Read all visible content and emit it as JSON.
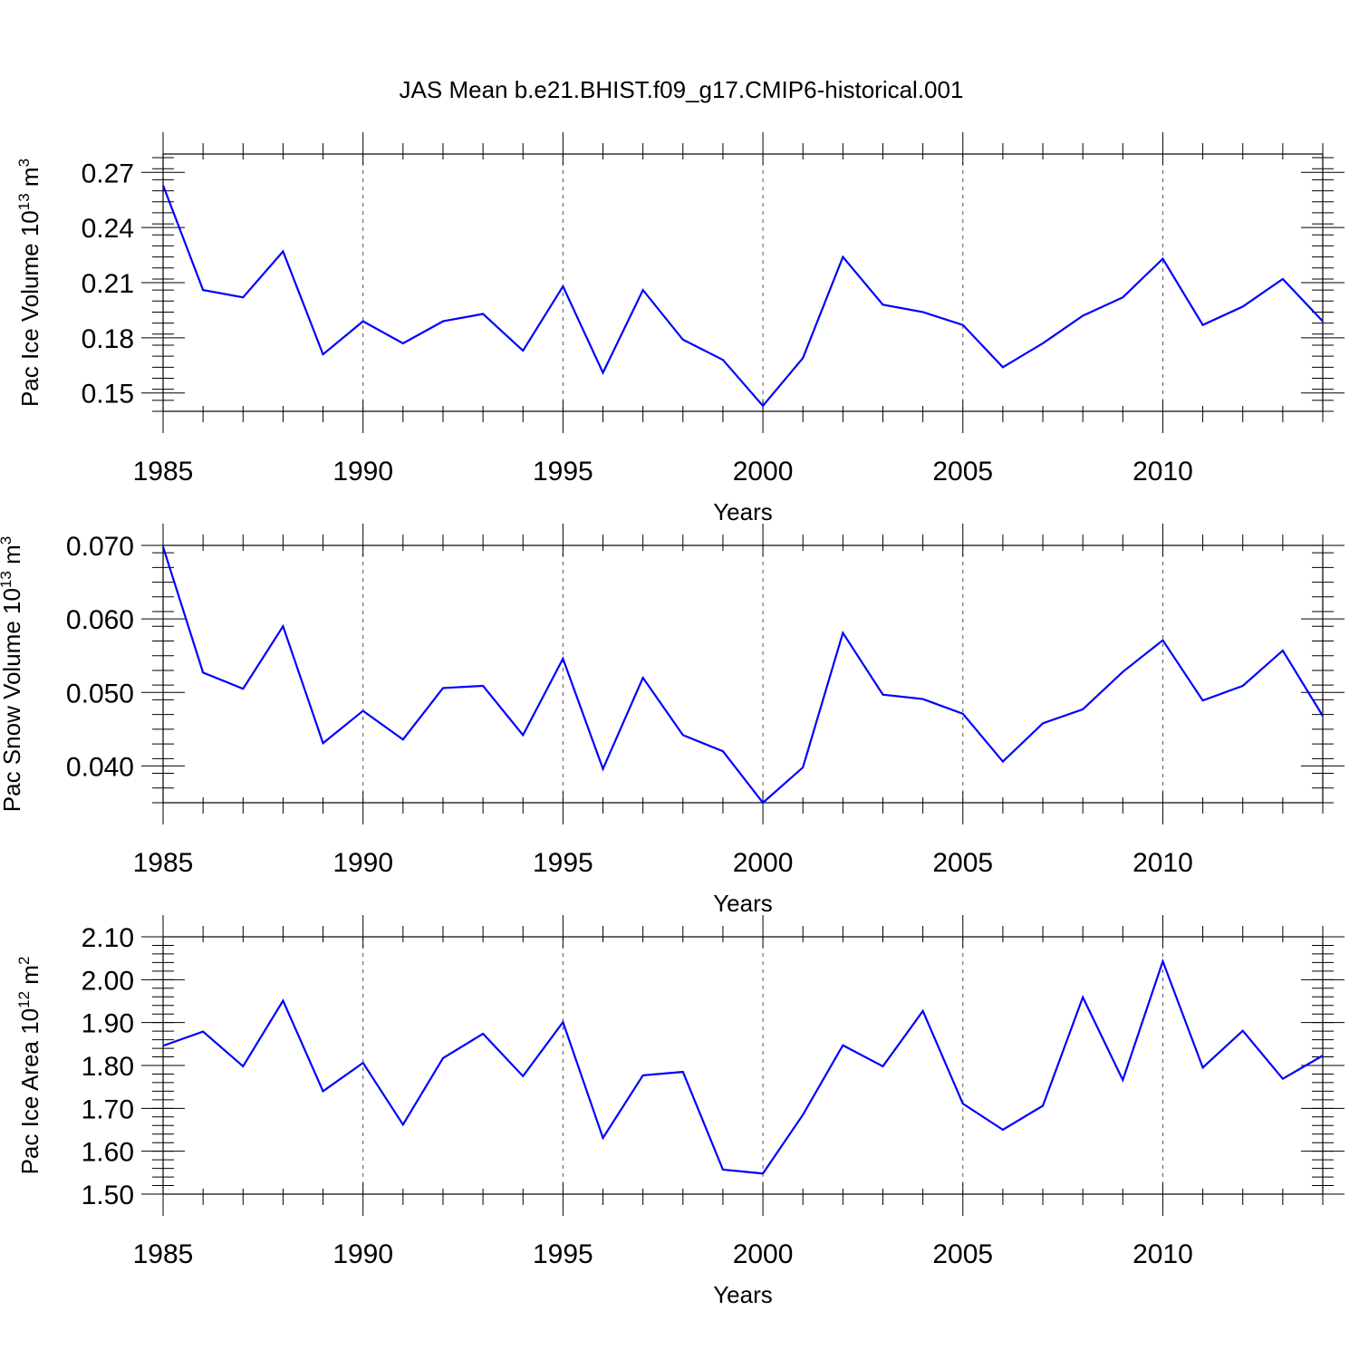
{
  "chart_data": {
    "type": "line",
    "title": "JAS Mean b.e21.BHIST.f09_g17.CMIP6-historical.001",
    "x": [
      1985,
      1986,
      1987,
      1988,
      1989,
      1990,
      1991,
      1992,
      1993,
      1994,
      1995,
      1996,
      1997,
      1998,
      1999,
      2000,
      2001,
      2002,
      2003,
      2004,
      2005,
      2006,
      2007,
      2008,
      2009,
      2010,
      2011,
      2012,
      2013,
      2014
    ],
    "xlim": [
      1985,
      2014
    ],
    "x_ticks": [
      1985,
      1990,
      1995,
      2000,
      2005,
      2010
    ],
    "x_tick_labels": [
      "1985",
      "1990",
      "1995",
      "2000",
      "2005",
      "2010"
    ],
    "grid": "vertical dashed at major x ticks",
    "panels": [
      {
        "xlabel": "Years",
        "ylabel_text": "Pac Ice Volume 10",
        "ylabel_exp": "13",
        "ylabel_unit": " m",
        "ylabel_unit_exp": "3",
        "ylim": [
          0.14,
          0.28
        ],
        "y_ticks": [
          0.15,
          0.18,
          0.21,
          0.24,
          0.27
        ],
        "y_tick_labels": [
          "0.15",
          "0.18",
          "0.21",
          "0.24",
          "0.27"
        ],
        "y_minor_step": 0.006,
        "series": [
          {
            "name": "Pac Ice Volume",
            "color": "#0000ff",
            "values": [
              0.263,
              0.206,
              0.202,
              0.227,
              0.171,
              0.189,
              0.177,
              0.189,
              0.193,
              0.173,
              0.208,
              0.161,
              0.206,
              0.179,
              0.168,
              0.143,
              0.169,
              0.224,
              0.198,
              0.194,
              0.187,
              0.164,
              0.177,
              0.192,
              0.202,
              0.223,
              0.187,
              0.197,
              0.212,
              0.189
            ]
          }
        ]
      },
      {
        "xlabel": "Years",
        "ylabel_text": "Pac Snow Volume 10",
        "ylabel_exp": "13",
        "ylabel_unit": " m",
        "ylabel_unit_exp": "3",
        "ylim": [
          0.035,
          0.07
        ],
        "y_ticks": [
          0.04,
          0.05,
          0.06,
          0.07
        ],
        "y_tick_labels": [
          "0.040",
          "0.050",
          "0.060",
          "0.070"
        ],
        "y_minor_step": 0.002,
        "series": [
          {
            "name": "Pac Snow Volume",
            "color": "#0000ff",
            "values": [
              0.0698,
              0.0527,
              0.0505,
              0.059,
              0.0431,
              0.0475,
              0.0436,
              0.0506,
              0.0509,
              0.0442,
              0.0546,
              0.0396,
              0.052,
              0.0442,
              0.042,
              0.035,
              0.0398,
              0.0581,
              0.0497,
              0.0491,
              0.0471,
              0.0406,
              0.0458,
              0.0477,
              0.0528,
              0.0571,
              0.0489,
              0.0509,
              0.0557,
              0.0468
            ]
          }
        ]
      },
      {
        "xlabel": "Years",
        "ylabel_text": "Pac Ice Area 10",
        "ylabel_exp": "12",
        "ylabel_unit": " m",
        "ylabel_unit_exp": "2",
        "ylim": [
          1.5,
          2.1
        ],
        "y_ticks": [
          1.5,
          1.6,
          1.7,
          1.8,
          1.9,
          2.0,
          2.1
        ],
        "y_tick_labels": [
          "1.50",
          "1.60",
          "1.70",
          "1.80",
          "1.90",
          "2.00",
          "2.10"
        ],
        "y_minor_step": 0.02,
        "series": [
          {
            "name": "Pac Ice Area",
            "color": "#0000ff",
            "values": [
              1.846,
              1.879,
              1.798,
              1.951,
              1.74,
              1.806,
              1.662,
              1.817,
              1.874,
              1.775,
              1.901,
              1.631,
              1.777,
              1.785,
              1.557,
              1.548,
              1.685,
              1.847,
              1.798,
              1.927,
              1.711,
              1.65,
              1.706,
              1.959,
              1.766,
              2.043,
              1.795,
              1.881,
              1.769,
              1.823
            ]
          }
        ]
      }
    ]
  }
}
